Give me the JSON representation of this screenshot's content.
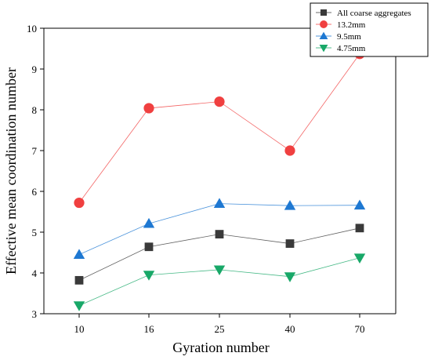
{
  "chart_data": {
    "type": "line",
    "categories": [
      "10",
      "16",
      "25",
      "40",
      "70"
    ],
    "xlabel": "Gyration number",
    "ylabel": "Effective mean coordination number",
    "ylim": [
      3,
      10
    ],
    "yticks": [
      "3",
      "4",
      "5",
      "6",
      "7",
      "8",
      "9",
      "10"
    ],
    "grid": false,
    "legend_position": "top-right",
    "series": [
      {
        "name": "All coarse aggregates",
        "color": "#3a3a3a",
        "marker": "square",
        "values": [
          3.82,
          4.64,
          4.95,
          4.72,
          5.1
        ]
      },
      {
        "name": "13.2mm",
        "color": "#f04040",
        "marker": "circle",
        "values": [
          5.72,
          8.04,
          8.2,
          7.0,
          9.37
        ]
      },
      {
        "name": "9.5mm",
        "color": "#1e78d2",
        "marker": "triangle-up",
        "values": [
          4.45,
          5.21,
          5.7,
          5.65,
          5.66
        ]
      },
      {
        "name": "4.75mm",
        "color": "#18a868",
        "marker": "triangle-down",
        "values": [
          3.2,
          3.95,
          4.08,
          3.91,
          4.37
        ]
      }
    ]
  }
}
